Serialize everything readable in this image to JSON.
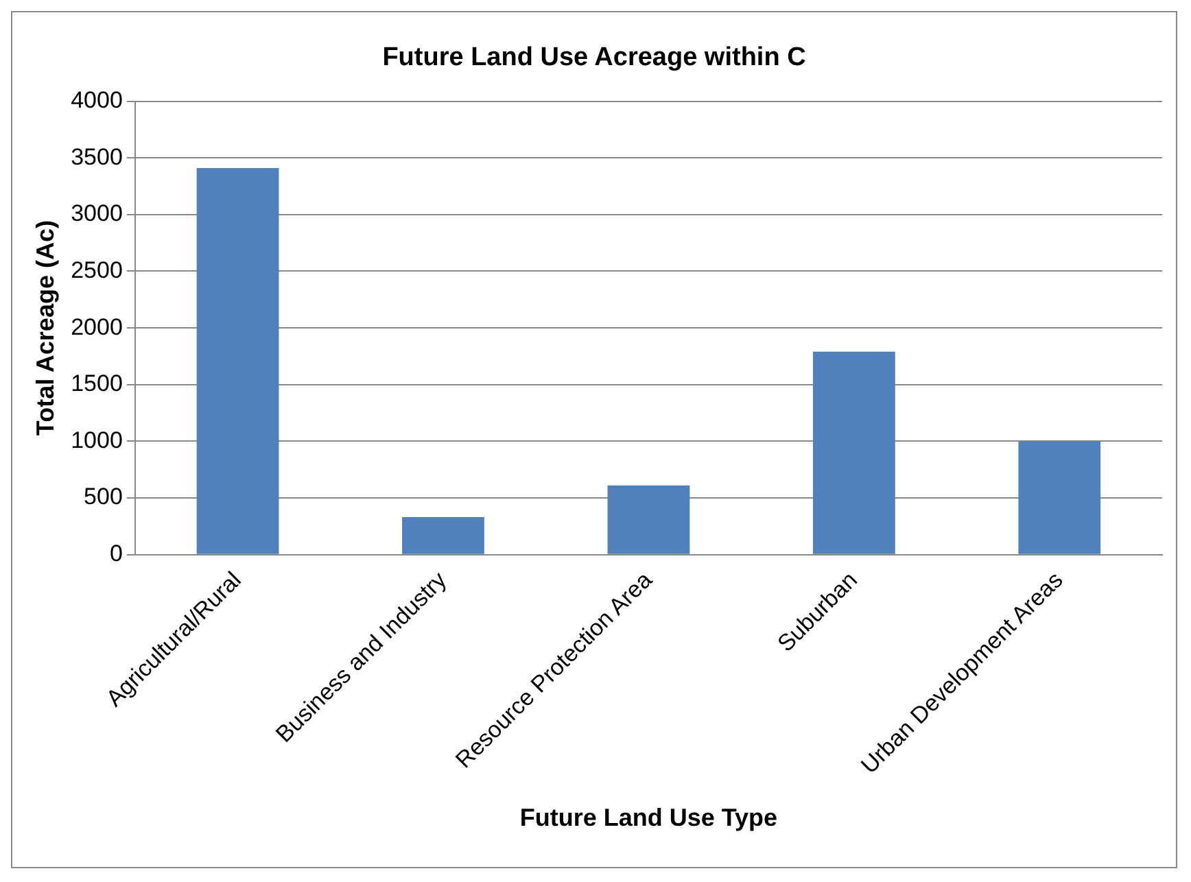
{
  "chart_data": {
    "type": "bar",
    "title": "Future Land Use Acreage within C",
    "xlabel": "Future Land Use Type",
    "ylabel": "Total Acreage (Ac)",
    "categories": [
      "Agricultural/Rural",
      "Business and Industry",
      "Resource Protection Area",
      "Suburban",
      "Urban Development Areas"
    ],
    "values": [
      3410,
      330,
      610,
      1790,
      1000
    ],
    "color": "#4f81bd",
    "ylim": [
      0,
      4000
    ],
    "yticks": [
      0,
      500,
      1000,
      1500,
      2000,
      2500,
      3000,
      3500,
      4000
    ],
    "grid": "y",
    "legend": false
  }
}
